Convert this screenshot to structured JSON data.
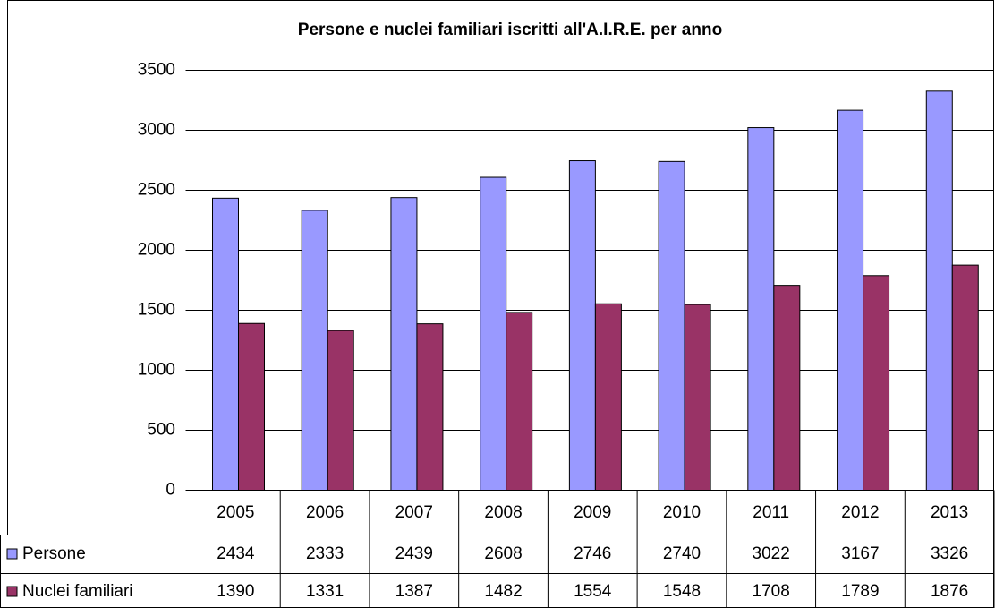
{
  "chart_data": {
    "type": "bar",
    "title": "Persone e nuclei familiari iscritti all'A.I.R.E. per anno",
    "categories": [
      "2005",
      "2006",
      "2007",
      "2008",
      "2009",
      "2010",
      "2011",
      "2012",
      "2013"
    ],
    "series": [
      {
        "name": "Persone",
        "color": "#9999ff",
        "values": [
          2434,
          2333,
          2439,
          2608,
          2746,
          2740,
          3022,
          3167,
          3326
        ]
      },
      {
        "name": "Nuclei familiari",
        "color": "#993366",
        "values": [
          1390,
          1331,
          1387,
          1482,
          1554,
          1548,
          1708,
          1789,
          1876
        ]
      }
    ],
    "ylim": [
      0,
      3500
    ],
    "yticks": [
      0,
      500,
      1000,
      1500,
      2000,
      2500,
      3000,
      3500
    ],
    "grid": true
  }
}
